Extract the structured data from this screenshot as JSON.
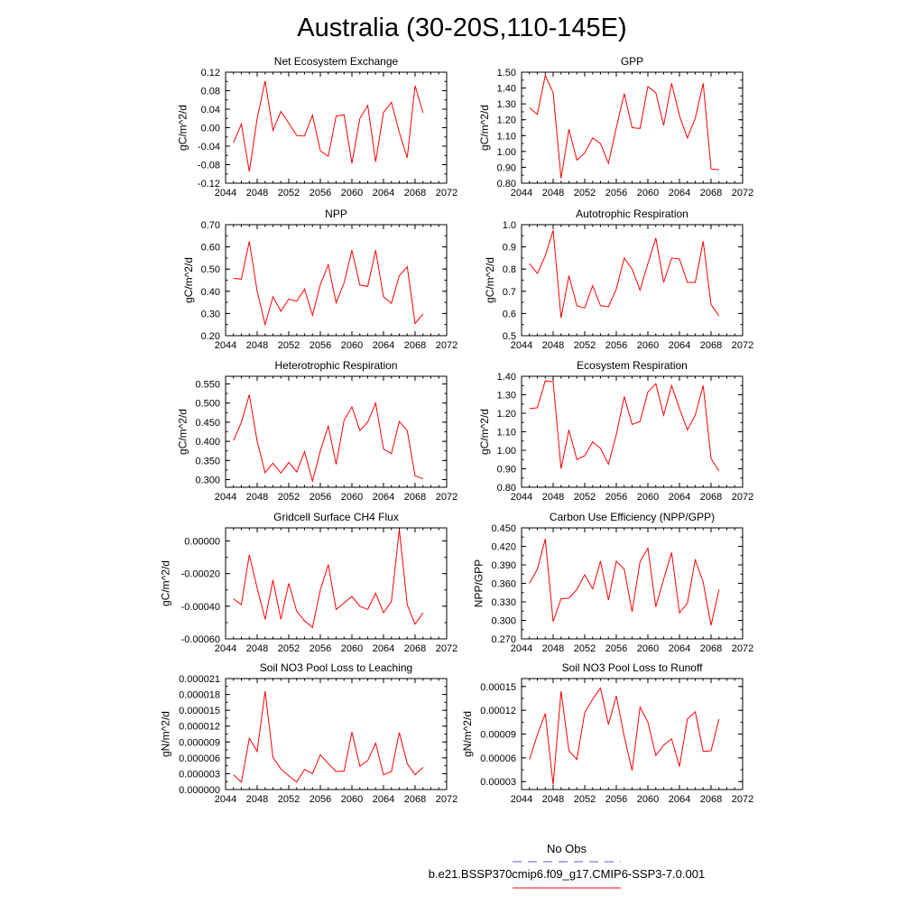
{
  "page_title": "Australia (30-20S,110-145E)",
  "legend": {
    "entries": [
      {
        "label": "No Obs",
        "color": "#5a5ad8",
        "dashed": true
      },
      {
        "label": "b.e21.BSSP370cmip6.f09_g17.CMIP6-SSP3-7.0.001",
        "color": "#ff0000",
        "dashed": false
      }
    ]
  },
  "colors": {
    "series": "#ff0000"
  },
  "chart_data": [
    {
      "type": "line",
      "title": "Net Ecosystem Exchange",
      "ylabel": "gC/m^2/d",
      "xlim": [
        2044,
        2072
      ],
      "xticks": [
        "2044",
        "2048",
        "2052",
        "2056",
        "2060",
        "2064",
        "2068",
        "2072"
      ],
      "ylim": [
        -0.12,
        0.12
      ],
      "yticks": [
        "-0.12",
        "-0.08",
        "-0.04",
        "0.00",
        "0.04",
        "0.08",
        "0.12"
      ],
      "x": [
        2045,
        2046,
        2047,
        2048,
        2049,
        2050,
        2051,
        2052,
        2053,
        2054,
        2055,
        2056,
        2057,
        2058,
        2059,
        2060,
        2061,
        2062,
        2063,
        2064,
        2065,
        2066,
        2067,
        2068,
        2069
      ],
      "values": [
        -0.032,
        0.008,
        -0.095,
        0.02,
        0.101,
        -0.006,
        0.035,
        0.01,
        -0.017,
        -0.018,
        0.027,
        -0.05,
        -0.062,
        0.025,
        0.028,
        -0.077,
        0.02,
        0.048,
        -0.074,
        0.033,
        0.055,
        -0.01,
        -0.065,
        0.091,
        0.032
      ]
    },
    {
      "type": "line",
      "title": "GPP",
      "ylabel": "gC/m^2/d",
      "xlim": [
        2044,
        2072
      ],
      "xticks": [
        "2044",
        "2048",
        "2052",
        "2056",
        "2060",
        "2064",
        "2068",
        "2072"
      ],
      "ylim": [
        0.8,
        1.5
      ],
      "yticks": [
        "0.80",
        "0.90",
        "1.00",
        "1.10",
        "1.20",
        "1.30",
        "1.40",
        "1.50"
      ],
      "x": [
        2045,
        2046,
        2047,
        2048,
        2049,
        2050,
        2051,
        2052,
        2053,
        2054,
        2055,
        2056,
        2057,
        2058,
        2059,
        2060,
        2061,
        2062,
        2063,
        2064,
        2065,
        2066,
        2067,
        2068,
        2069
      ],
      "values": [
        1.275,
        1.235,
        1.48,
        1.37,
        0.83,
        1.14,
        0.945,
        0.99,
        1.085,
        1.05,
        0.925,
        1.15,
        1.365,
        1.15,
        1.145,
        1.41,
        1.37,
        1.165,
        1.43,
        1.225,
        1.085,
        1.21,
        1.43,
        0.89,
        0.885
      ]
    },
    {
      "type": "line",
      "title": "NPP",
      "ylabel": "gC/m^2/d",
      "xlim": [
        2044,
        2072
      ],
      "xticks": [
        "2044",
        "2048",
        "2052",
        "2056",
        "2060",
        "2064",
        "2068",
        "2072"
      ],
      "ylim": [
        0.2,
        0.7
      ],
      "yticks": [
        "0.20",
        "0.30",
        "0.40",
        "0.50",
        "0.60",
        "0.70"
      ],
      "x": [
        2045,
        2046,
        2047,
        2048,
        2049,
        2050,
        2051,
        2052,
        2053,
        2054,
        2055,
        2056,
        2057,
        2058,
        2059,
        2060,
        2061,
        2062,
        2063,
        2064,
        2065,
        2066,
        2067,
        2068,
        2069
      ],
      "values": [
        0.458,
        0.455,
        0.625,
        0.4,
        0.25,
        0.375,
        0.31,
        0.365,
        0.355,
        0.41,
        0.292,
        0.43,
        0.52,
        0.348,
        0.438,
        0.585,
        0.428,
        0.422,
        0.585,
        0.375,
        0.345,
        0.47,
        0.51,
        0.255,
        0.298
      ]
    },
    {
      "type": "line",
      "title": "Autotrophic Respiration",
      "ylabel": "gC/m^2/d",
      "xlim": [
        2044,
        2072
      ],
      "xticks": [
        "2044",
        "2048",
        "2052",
        "2056",
        "2060",
        "2064",
        "2068",
        "2072"
      ],
      "ylim": [
        0.5,
        1.0
      ],
      "yticks": [
        "0.5",
        "0.6",
        "0.7",
        "0.8",
        "0.9",
        "1.0"
      ],
      "x": [
        2045,
        2046,
        2047,
        2048,
        2049,
        2050,
        2051,
        2052,
        2053,
        2054,
        2055,
        2056,
        2057,
        2058,
        2059,
        2060,
        2061,
        2062,
        2063,
        2064,
        2065,
        2066,
        2067,
        2068,
        2069
      ],
      "values": [
        0.825,
        0.78,
        0.86,
        0.975,
        0.58,
        0.77,
        0.635,
        0.625,
        0.725,
        0.635,
        0.63,
        0.71,
        0.85,
        0.8,
        0.705,
        0.825,
        0.94,
        0.74,
        0.85,
        0.845,
        0.74,
        0.74,
        0.925,
        0.64,
        0.59
      ]
    },
    {
      "type": "line",
      "title": "Heterotrophic Respiration",
      "ylabel": "gC/m^2/d",
      "xlim": [
        2044,
        2072
      ],
      "xticks": [
        "2044",
        "2048",
        "2052",
        "2056",
        "2060",
        "2064",
        "2068",
        "2072"
      ],
      "ylim": [
        0.28,
        0.57
      ],
      "yticks": [
        "0.300",
        "0.350",
        "0.400",
        "0.450",
        "0.500",
        "0.550"
      ],
      "x": [
        2045,
        2046,
        2047,
        2048,
        2049,
        2050,
        2051,
        2052,
        2053,
        2054,
        2055,
        2056,
        2057,
        2058,
        2059,
        2060,
        2061,
        2062,
        2063,
        2064,
        2065,
        2066,
        2067,
        2068,
        2069
      ],
      "values": [
        0.402,
        0.45,
        0.522,
        0.4,
        0.318,
        0.343,
        0.317,
        0.345,
        0.32,
        0.373,
        0.296,
        0.375,
        0.44,
        0.34,
        0.455,
        0.49,
        0.428,
        0.45,
        0.5,
        0.38,
        0.368,
        0.452,
        0.428,
        0.31,
        0.302
      ]
    },
    {
      "type": "line",
      "title": "Ecosystem Respiration",
      "ylabel": "gC/m^2/d",
      "xlim": [
        2044,
        2072
      ],
      "xticks": [
        "2044",
        "2048",
        "2052",
        "2056",
        "2060",
        "2064",
        "2068",
        "2072"
      ],
      "ylim": [
        0.8,
        1.4
      ],
      "yticks": [
        "0.80",
        "0.90",
        "1.00",
        "1.10",
        "1.20",
        "1.30",
        "1.40"
      ],
      "x": [
        2045,
        2046,
        2047,
        2048,
        2049,
        2050,
        2051,
        2052,
        2053,
        2054,
        2055,
        2056,
        2057,
        2058,
        2059,
        2060,
        2061,
        2062,
        2063,
        2064,
        2065,
        2066,
        2067,
        2068,
        2069
      ],
      "values": [
        1.225,
        1.23,
        1.375,
        1.37,
        0.9,
        1.11,
        0.95,
        0.97,
        1.045,
        1.01,
        0.925,
        1.085,
        1.29,
        1.14,
        1.155,
        1.315,
        1.36,
        1.19,
        1.35,
        1.225,
        1.11,
        1.19,
        1.35,
        0.955,
        0.888
      ]
    },
    {
      "type": "line",
      "title": "Gridcell Surface CH4 Flux",
      "ylabel": "gC/m^2/d",
      "xlim": [
        2044,
        2072
      ],
      "xticks": [
        "2044",
        "2048",
        "2052",
        "2056",
        "2060",
        "2064",
        "2068",
        "2072"
      ],
      "ylim": [
        -0.0006,
        8e-05
      ],
      "yticks": [
        "-0.00060",
        "-0.00040",
        "-0.00020",
        "0.00000"
      ],
      "x": [
        2045,
        2046,
        2047,
        2048,
        2049,
        2050,
        2051,
        2052,
        2053,
        2054,
        2055,
        2056,
        2057,
        2058,
        2059,
        2060,
        2061,
        2062,
        2063,
        2064,
        2065,
        2066,
        2067,
        2068,
        2069
      ],
      "values": [
        -0.000355,
        -0.00039,
        -8.5e-05,
        -0.00029,
        -0.00048,
        -0.00024,
        -0.00048,
        -0.00026,
        -0.00043,
        -0.00049,
        -0.00053,
        -0.0003,
        -0.000145,
        -0.00042,
        -0.00038,
        -0.00034,
        -0.0004,
        -0.00042,
        -0.00032,
        -0.00044,
        -0.00037,
        7e-05,
        -0.00039,
        -0.00051,
        -0.00044
      ]
    },
    {
      "type": "line",
      "title": "Carbon Use Efficiency (NPP/GPP)",
      "ylabel": "NPP/GPP",
      "xlim": [
        2044,
        2072
      ],
      "xticks": [
        "2044",
        "2048",
        "2052",
        "2056",
        "2060",
        "2064",
        "2068",
        "2072"
      ],
      "ylim": [
        0.27,
        0.45
      ],
      "yticks": [
        "0.270",
        "0.300",
        "0.330",
        "0.360",
        "0.390",
        "0.420",
        "0.450"
      ],
      "x": [
        2045,
        2046,
        2047,
        2048,
        2049,
        2050,
        2051,
        2052,
        2053,
        2054,
        2055,
        2056,
        2057,
        2058,
        2059,
        2060,
        2061,
        2062,
        2063,
        2064,
        2065,
        2066,
        2067,
        2068,
        2069
      ],
      "values": [
        0.36,
        0.383,
        0.432,
        0.298,
        0.335,
        0.336,
        0.35,
        0.374,
        0.351,
        0.396,
        0.333,
        0.396,
        0.383,
        0.314,
        0.395,
        0.417,
        0.322,
        0.367,
        0.41,
        0.312,
        0.328,
        0.398,
        0.362,
        0.292,
        0.35
      ]
    },
    {
      "type": "line",
      "title": "Soil NO3 Pool Loss to Leaching",
      "ylabel": "gN/m^2/d",
      "xlim": [
        2044,
        2072
      ],
      "xticks": [
        "2044",
        "2048",
        "2052",
        "2056",
        "2060",
        "2064",
        "2068",
        "2072"
      ],
      "ylim": [
        0.0,
        2.1e-05
      ],
      "yticks": [
        "0.000000",
        "0.000003",
        "0.000006",
        "0.000009",
        "0.000012",
        "0.000015",
        "0.000018",
        "0.000021"
      ],
      "x": [
        2045,
        2046,
        2047,
        2048,
        2049,
        2050,
        2051,
        2052,
        2053,
        2054,
        2055,
        2056,
        2057,
        2058,
        2059,
        2060,
        2061,
        2062,
        2063,
        2064,
        2065,
        2066,
        2067,
        2068,
        2069
      ],
      "values": [
        2.8e-06,
        1.4e-06,
        9.7e-06,
        7.2e-06,
        1.86e-05,
        6.1e-06,
        3.9e-06,
        2.6e-06,
        1.4e-06,
        3.8e-06,
        3e-06,
        6.6e-06,
        4.9e-06,
        3.4e-06,
        3.5e-06,
        1.09e-05,
        4.4e-06,
        5.5e-06,
        8.8e-06,
        2.8e-06,
        3.4e-06,
        1.08e-05,
        4.9e-06,
        2.8e-06,
        4.2e-06
      ]
    },
    {
      "type": "line",
      "title": "Soil NO3 Pool Loss to Runoff",
      "ylabel": "gN/m^2/d",
      "xlim": [
        2044,
        2072
      ],
      "xticks": [
        "2044",
        "2048",
        "2052",
        "2056",
        "2060",
        "2064",
        "2068",
        "2072"
      ],
      "ylim": [
        2e-05,
        0.00016
      ],
      "yticks": [
        "0.00003",
        "0.00006",
        "0.00009",
        "0.00012",
        "0.00015"
      ],
      "x": [
        2045,
        2046,
        2047,
        2048,
        2049,
        2050,
        2051,
        2052,
        2053,
        2054,
        2055,
        2056,
        2057,
        2058,
        2059,
        2060,
        2061,
        2062,
        2063,
        2064,
        2065,
        2066,
        2067,
        2068,
        2069
      ],
      "values": [
        5.8e-05,
        8.9e-05,
        0.000116,
        2.6e-05,
        0.000144,
        6.9e-05,
        5.8e-05,
        0.000117,
        0.000134,
        0.000148,
        0.000102,
        0.000138,
        8.7e-05,
        4.4e-05,
        0.000124,
        0.000105,
        6.3e-05,
        7.6e-05,
        8.4e-05,
        4.9e-05,
        0.000109,
        0.000118,
        6.8e-05,
        6.9e-05,
        0.000109
      ]
    }
  ]
}
